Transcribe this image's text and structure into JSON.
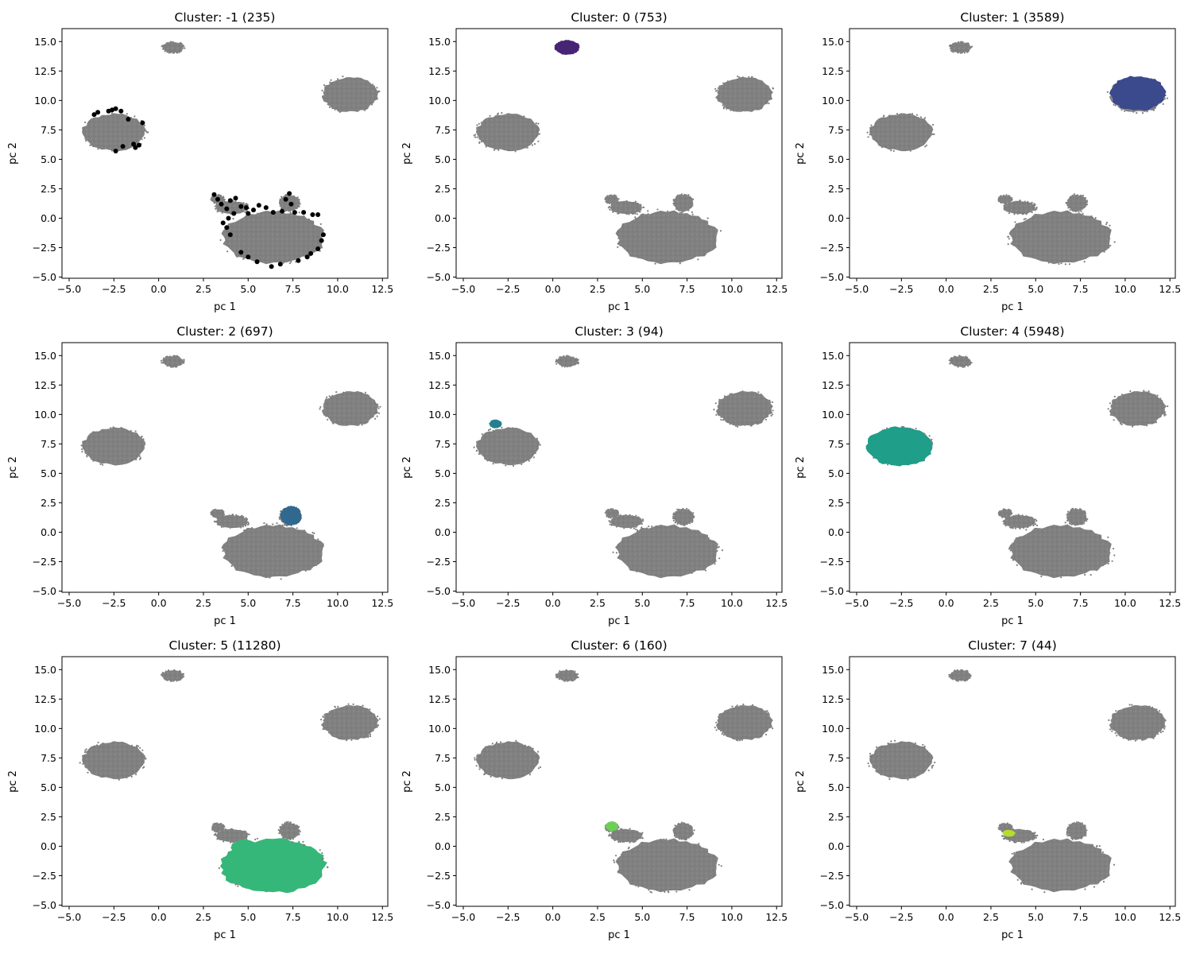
{
  "chart_data": {
    "type": "scatter",
    "layout": "3x3 grid of subplots",
    "background_color": "#808080",
    "xlabel": "pc 1",
    "ylabel": "pc 2",
    "xlim": [
      -5.4,
      12.8
    ],
    "ylim": [
      -5.1,
      16.1
    ],
    "xticks": [
      -5.0,
      -2.5,
      0.0,
      2.5,
      5.0,
      7.5,
      10.0,
      12.5
    ],
    "xtick_labels": [
      "−5.0",
      "−2.5",
      "0.0",
      "2.5",
      "5.0",
      "7.5",
      "10.0",
      "12.5"
    ],
    "yticks": [
      -5.0,
      -2.5,
      0.0,
      2.5,
      5.0,
      7.5,
      10.0,
      12.5,
      15.0
    ],
    "ytick_labels": [
      "−5.0",
      "−2.5",
      "0.0",
      "2.5",
      "5.0",
      "7.5",
      "10.0",
      "12.5",
      "15.0"
    ],
    "grid": false,
    "background_blobs": [
      {
        "cx": 0.8,
        "cy": 14.5,
        "rx": 0.6,
        "ry": 0.45
      },
      {
        "cx": 10.7,
        "cy": 10.5,
        "rx": 1.55,
        "ry": 1.45
      },
      {
        "cx": -2.5,
        "cy": 7.3,
        "rx": 1.75,
        "ry": 1.55
      },
      {
        "cx": 6.4,
        "cy": -1.6,
        "rx": 2.8,
        "ry": 2.2
      },
      {
        "cx": 7.3,
        "cy": 1.3,
        "rx": 0.55,
        "ry": 0.7
      },
      {
        "cx": 4.1,
        "cy": 0.9,
        "rx": 0.9,
        "ry": 0.55
      },
      {
        "cx": 3.3,
        "cy": 1.6,
        "rx": 0.35,
        "ry": 0.35
      }
    ],
    "panels": [
      {
        "title": "Cluster: -1 (235)",
        "cluster": -1,
        "count": 235,
        "color": "#000000",
        "style": "noise",
        "points": [
          [
            -3.6,
            8.8
          ],
          [
            -3.4,
            9.0
          ],
          [
            -2.8,
            9.1
          ],
          [
            -2.6,
            9.2
          ],
          [
            -2.4,
            9.3
          ],
          [
            -2.1,
            9.1
          ],
          [
            -1.7,
            8.4
          ],
          [
            -0.9,
            8.1
          ],
          [
            -1.4,
            6.3
          ],
          [
            -1.1,
            6.2
          ],
          [
            -1.3,
            6.0
          ],
          [
            -2.0,
            6.1
          ],
          [
            -2.4,
            5.7
          ],
          [
            3.1,
            2.0
          ],
          [
            3.3,
            1.6
          ],
          [
            3.5,
            1.2
          ],
          [
            3.8,
            0.8
          ],
          [
            4.0,
            1.5
          ],
          [
            4.3,
            1.7
          ],
          [
            4.6,
            1.0
          ],
          [
            4.9,
            0.9
          ],
          [
            5.3,
            0.7
          ],
          [
            5.6,
            1.1
          ],
          [
            6.0,
            0.9
          ],
          [
            6.4,
            0.5
          ],
          [
            6.9,
            0.6
          ],
          [
            7.3,
            2.1
          ],
          [
            7.6,
            0.5
          ],
          [
            8.1,
            0.5
          ],
          [
            8.6,
            0.3
          ],
          [
            3.9,
            0.0
          ],
          [
            3.8,
            -0.8
          ],
          [
            4.0,
            -1.4
          ],
          [
            9.2,
            -1.4
          ],
          [
            9.1,
            -1.9
          ],
          [
            8.9,
            -2.6
          ],
          [
            8.5,
            -3.0
          ],
          [
            4.6,
            -2.9
          ],
          [
            5.0,
            -3.3
          ],
          [
            5.5,
            -3.7
          ],
          [
            6.3,
            -4.1
          ],
          [
            6.8,
            -3.9
          ],
          [
            7.8,
            -3.6
          ],
          [
            8.3,
            -3.3
          ],
          [
            3.6,
            -0.4
          ],
          [
            7.1,
            1.6
          ],
          [
            7.4,
            1.2
          ],
          [
            5.0,
            0.4
          ],
          [
            4.2,
            0.4
          ],
          [
            8.9,
            0.3
          ]
        ]
      },
      {
        "title": "Cluster: 0 (753)",
        "cluster": 0,
        "count": 753,
        "color": "#482475",
        "blobs": [
          {
            "cx": 0.8,
            "cy": 14.5,
            "rx": 0.65,
            "ry": 0.55
          }
        ]
      },
      {
        "title": "Cluster: 1 (3589)",
        "cluster": 1,
        "count": 3589,
        "color": "#3b4a8c",
        "blobs": [
          {
            "cx": 10.7,
            "cy": 10.6,
            "rx": 1.5,
            "ry": 1.4
          }
        ]
      },
      {
        "title": "Cluster: 2 (697)",
        "cluster": 2,
        "count": 697,
        "color": "#31688e",
        "blobs": [
          {
            "cx": 7.4,
            "cy": 1.4,
            "rx": 0.55,
            "ry": 0.75
          }
        ]
      },
      {
        "title": "Cluster: 3 (94)",
        "cluster": 3,
        "count": 94,
        "color": "#25808e",
        "blobs": [
          {
            "cx": -3.2,
            "cy": 9.2,
            "rx": 0.3,
            "ry": 0.3
          }
        ]
      },
      {
        "title": "Cluster: 4 (5948)",
        "cluster": 4,
        "count": 5948,
        "color": "#1f9e89",
        "blobs": [
          {
            "cx": -2.6,
            "cy": 7.3,
            "rx": 1.8,
            "ry": 1.6
          }
        ]
      },
      {
        "title": "Cluster: 5 (11280)",
        "cluster": 5,
        "count": 11280,
        "color": "#35b779",
        "blobs": [
          {
            "cx": 6.4,
            "cy": -1.7,
            "rx": 2.85,
            "ry": 2.2
          },
          {
            "cx": 4.8,
            "cy": -0.1,
            "rx": 0.7,
            "ry": 0.6
          }
        ]
      },
      {
        "title": "Cluster: 6 (160)",
        "cluster": 6,
        "count": 160,
        "color": "#6ece58",
        "blobs": [
          {
            "cx": 3.3,
            "cy": 1.7,
            "rx": 0.3,
            "ry": 0.35
          }
        ]
      },
      {
        "title": "Cluster: 7 (44)",
        "cluster": 7,
        "count": 44,
        "color": "#b5de2b",
        "blobs": [
          {
            "cx": 3.5,
            "cy": 1.1,
            "rx": 0.3,
            "ry": 0.22
          }
        ]
      }
    ]
  }
}
